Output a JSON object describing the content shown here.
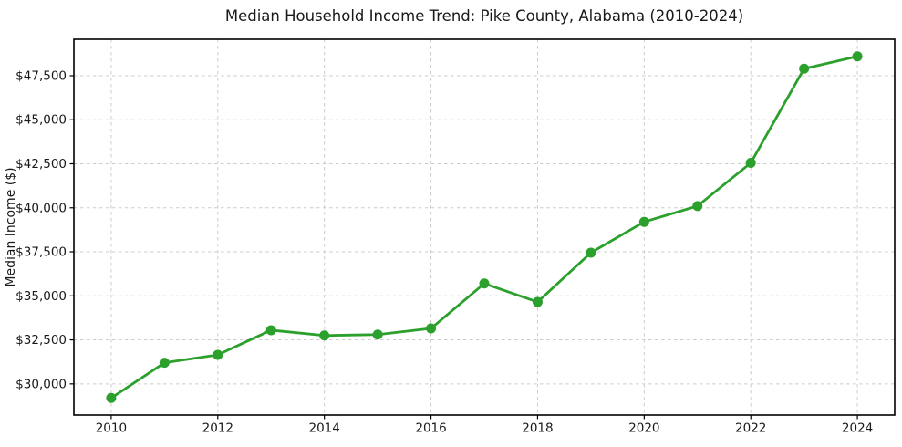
{
  "chart_data": {
    "type": "line",
    "title": "Median Household Income Trend: Pike County, Alabama (2010-2024)",
    "xlabel": "",
    "ylabel": "Median Income ($)",
    "x": [
      2010,
      2011,
      2012,
      2013,
      2014,
      2015,
      2016,
      2017,
      2018,
      2019,
      2020,
      2021,
      2022,
      2023,
      2024
    ],
    "values": [
      29200,
      31200,
      31650,
      33050,
      32750,
      32800,
      33150,
      35700,
      34650,
      37450,
      39200,
      40100,
      42550,
      47900,
      48600
    ],
    "xlim": [
      2009.3,
      2024.7
    ],
    "ylim": [
      28230,
      49570
    ],
    "xticks": {
      "values": [
        2010,
        2012,
        2014,
        2016,
        2018,
        2020,
        2022,
        2024
      ],
      "labels": [
        "2010",
        "2012",
        "2014",
        "2016",
        "2018",
        "2020",
        "2022",
        "2024"
      ]
    },
    "yticks": {
      "values": [
        30000,
        32500,
        35000,
        37500,
        40000,
        42500,
        45000,
        47500
      ],
      "labels": [
        "$30,000",
        "$32,500",
        "$35,000",
        "$37,500",
        "$40,000",
        "$42,500",
        "$45,000",
        "$47,500"
      ]
    },
    "grid": true,
    "grid_style": "dashed",
    "legend_position": "none",
    "colors": {
      "line": "#2ca02c",
      "marker": "#2ca02c",
      "gridline": "#cccccc",
      "axis_border": "#000000",
      "background": "#ffffff",
      "text": "#1a1a1a"
    },
    "marker": "circle"
  }
}
